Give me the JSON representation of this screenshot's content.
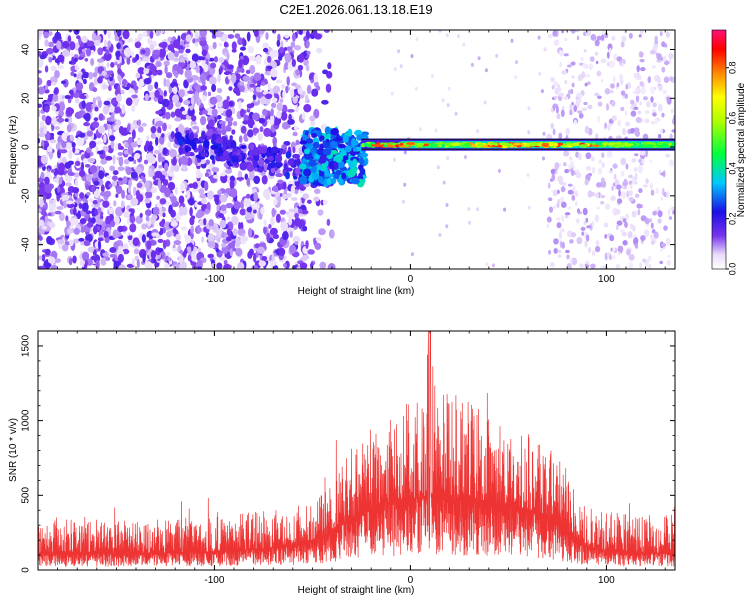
{
  "title": "C2E1.2026.061.13.18.E19",
  "chart_data": [
    {
      "type": "heatmap",
      "title": "C2E1.2026.061.13.18.E19",
      "xlabel": "Height of straight line (km)",
      "ylabel": "Frequency (Hz)",
      "xlim": [
        -190,
        135
      ],
      "ylim": [
        -50,
        48
      ],
      "x_ticks": [
        -100,
        0,
        100
      ],
      "y_ticks": [
        -40,
        -20,
        0,
        20,
        40
      ],
      "y_tick_labels": [
        "-40",
        "-20",
        "0",
        "20",
        "40"
      ],
      "x_tick_labels": [
        "-100",
        "0",
        "100"
      ],
      "colorbar": {
        "label": "Normalized spectral amplitude",
        "range": [
          0,
          0.95
        ],
        "ticks": [
          0.0,
          0.2,
          0.4,
          0.6,
          0.8
        ],
        "tick_labels": [
          "0.0",
          "0.2",
          "0.4",
          "0.6",
          "0.8"
        ]
      },
      "features": [
        {
          "name": "broadband noise",
          "x_range": [
            -190,
            -45
          ],
          "freq_range": [
            -50,
            48
          ],
          "amplitude": 0.1
        },
        {
          "name": "tone onset cluster",
          "x_range": [
            -50,
            -25
          ],
          "freq_range": [
            -15,
            8
          ],
          "amplitude": 0.25
        },
        {
          "name": "narrowband tone",
          "x_range": [
            -25,
            135
          ],
          "freq": 0.5,
          "amplitude_peak": 0.85
        }
      ]
    },
    {
      "type": "line",
      "xlabel": "Height of straight line (km)",
      "ylabel": "SNR (10 * v/v)",
      "xlim": [
        -190,
        135
      ],
      "ylim": [
        0,
        1600
      ],
      "x_ticks": [
        -100,
        0,
        100
      ],
      "x_tick_labels": [
        "-100",
        "0",
        "100"
      ],
      "y_ticks": [
        0,
        500,
        1000,
        1500
      ],
      "y_tick_labels": [
        "0",
        "500",
        "1000",
        "1500"
      ],
      "color": "#ee3333",
      "envelope": {
        "x": [
          -190,
          -150,
          -110,
          -90,
          -60,
          -45,
          -30,
          -20,
          -10,
          0,
          10,
          20,
          30,
          40,
          50,
          60,
          70,
          80,
          90,
          100,
          115,
          135
        ],
        "baseline": [
          110,
          110,
          120,
          130,
          160,
          220,
          350,
          420,
          460,
          480,
          500,
          480,
          470,
          460,
          440,
          400,
          360,
          260,
          160,
          130,
          120,
          110
        ],
        "peak": [
          380,
          360,
          380,
          400,
          450,
          560,
          880,
          1050,
          1150,
          1250,
          1600,
          1280,
          1200,
          1150,
          1050,
          980,
          900,
          720,
          480,
          420,
          400,
          400
        ]
      }
    }
  ]
}
